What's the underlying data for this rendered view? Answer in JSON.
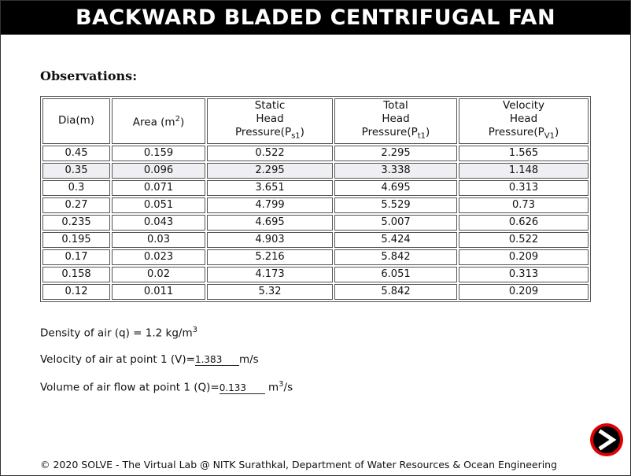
{
  "title": "BACKWARD BLADED CENTRIFUGAL FAN",
  "observations_heading": "Observations:",
  "table": {
    "headers": {
      "dia": "Dia(m)",
      "area": {
        "text": "Area (m",
        "sup": "2",
        "tail": ")"
      },
      "static": {
        "line1": "Static",
        "line2": "Head",
        "line3": "Pressure(P",
        "sub": "s1",
        "tail": ")"
      },
      "total": {
        "line1": "Total",
        "line2": "Head",
        "line3": "Pressure(P",
        "sub": "t1",
        "tail": ")"
      },
      "velocity": {
        "line1": "Velocity",
        "line2": "Head",
        "line3": "Pressure(P",
        "sub": "V1",
        "tail": ")"
      }
    },
    "rows": [
      [
        "0.45",
        "0.159",
        "0.522",
        "2.295",
        "1.565"
      ],
      [
        "0.35",
        "0.096",
        "2.295",
        "3.338",
        "1.148"
      ],
      [
        "0.3",
        "0.071",
        "3.651",
        "4.695",
        "0.313"
      ],
      [
        "0.27",
        "0.051",
        "4.799",
        "5.529",
        "0.73"
      ],
      [
        "0.235",
        "0.043",
        "4.695",
        "5.007",
        "0.626"
      ],
      [
        "0.195",
        "0.03",
        "4.903",
        "5.424",
        "0.522"
      ],
      [
        "0.17",
        "0.023",
        "5.216",
        "5.842",
        "0.209"
      ],
      [
        "0.158",
        "0.02",
        "4.173",
        "6.051",
        "0.313"
      ],
      [
        "0.12",
        "0.011",
        "5.32",
        "5.842",
        "0.209"
      ]
    ],
    "highlight_row": 1
  },
  "density": {
    "label": "Density of air (q) = 1.2 kg/m",
    "sup": "3"
  },
  "velocity": {
    "label": "Velocity of air at point 1 (V)=",
    "value": "1.383",
    "unit": "m/s"
  },
  "volume": {
    "label": "Volume of air flow at point 1 (Q)=",
    "value": "0.133",
    "unit": "m",
    "unit_sup": "3",
    "unit_tail": "/s"
  },
  "next_button": {
    "icon": "chevron-right-icon",
    "ring_color": "#e00000"
  },
  "footer": "© 2020 SOLVE - The Virtual Lab @ NITK Surathkal, Department of Water Resources & Ocean Engineering"
}
